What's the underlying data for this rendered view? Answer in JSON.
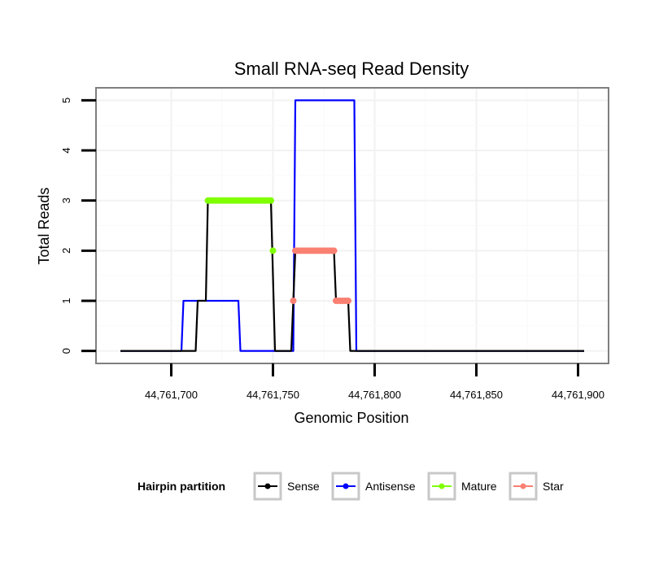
{
  "chart_data": {
    "type": "line",
    "title": "Small RNA-seq Read Density",
    "xlabel": "Genomic Position",
    "ylabel": "Total Reads",
    "xlim": [
      44761663,
      44761915
    ],
    "ylim": [
      -0.25,
      5.25
    ],
    "x_ticks": [
      44761700,
      44761750,
      44761800,
      44761850,
      44761900
    ],
    "x_tick_labels": [
      "44,761,700",
      "44,761,750",
      "44,761,800",
      "44,761,850",
      "44,761,900"
    ],
    "y_ticks": [
      0,
      1,
      2,
      3,
      4,
      5
    ],
    "y_tick_labels": [
      "0",
      "1",
      "2",
      "3",
      "4",
      "5"
    ],
    "grid": true,
    "legend": {
      "title": "Hairpin partition",
      "position": "bottom",
      "entries": [
        {
          "name": "Sense",
          "color": "#000000"
        },
        {
          "name": "Antisense",
          "color": "#0000ff"
        },
        {
          "name": "Mature",
          "color": "#7fff00"
        },
        {
          "name": "Star",
          "color": "#fa8072"
        }
      ]
    },
    "series": [
      {
        "name": "Antisense",
        "color": "#0000ff",
        "style": "line",
        "points": [
          [
            44761675,
            0
          ],
          [
            44761705,
            0
          ],
          [
            44761706,
            1
          ],
          [
            44761733,
            1
          ],
          [
            44761734,
            0
          ],
          [
            44761760,
            0
          ],
          [
            44761761,
            5
          ],
          [
            44761790,
            5
          ],
          [
            44761791,
            0
          ],
          [
            44761903,
            0
          ]
        ]
      },
      {
        "name": "Sense",
        "color": "#000000",
        "style": "line",
        "points": [
          [
            44761675,
            0
          ],
          [
            44761712,
            0
          ],
          [
            44761713,
            1
          ],
          [
            44761717,
            1
          ],
          [
            44761718,
            3
          ],
          [
            44761749,
            3
          ],
          [
            44761751,
            0
          ],
          [
            44761759,
            0
          ],
          [
            44761760,
            1
          ],
          [
            44761761,
            2
          ],
          [
            44761780,
            2
          ],
          [
            44761781,
            1
          ],
          [
            44761787,
            1
          ],
          [
            44761788,
            0
          ],
          [
            44761903,
            0
          ]
        ]
      },
      {
        "name": "Mature",
        "color": "#7fff00",
        "style": "points",
        "points": [
          [
            44761718,
            3
          ],
          [
            44761719,
            3
          ],
          [
            44761720,
            3
          ],
          [
            44761721,
            3
          ],
          [
            44761722,
            3
          ],
          [
            44761723,
            3
          ],
          [
            44761724,
            3
          ],
          [
            44761725,
            3
          ],
          [
            44761726,
            3
          ],
          [
            44761727,
            3
          ],
          [
            44761728,
            3
          ],
          [
            44761729,
            3
          ],
          [
            44761730,
            3
          ],
          [
            44761731,
            3
          ],
          [
            44761732,
            3
          ],
          [
            44761733,
            3
          ],
          [
            44761734,
            3
          ],
          [
            44761735,
            3
          ],
          [
            44761736,
            3
          ],
          [
            44761737,
            3
          ],
          [
            44761738,
            3
          ],
          [
            44761739,
            3
          ],
          [
            44761740,
            3
          ],
          [
            44761741,
            3
          ],
          [
            44761742,
            3
          ],
          [
            44761743,
            3
          ],
          [
            44761744,
            3
          ],
          [
            44761745,
            3
          ],
          [
            44761746,
            3
          ],
          [
            44761747,
            3
          ],
          [
            44761748,
            3
          ],
          [
            44761749,
            3
          ],
          [
            44761750,
            2
          ]
        ]
      },
      {
        "name": "Star",
        "color": "#fa8072",
        "style": "points",
        "points": [
          [
            44761760,
            1
          ],
          [
            44761761,
            2
          ],
          [
            44761762,
            2
          ],
          [
            44761763,
            2
          ],
          [
            44761764,
            2
          ],
          [
            44761765,
            2
          ],
          [
            44761766,
            2
          ],
          [
            44761767,
            2
          ],
          [
            44761768,
            2
          ],
          [
            44761769,
            2
          ],
          [
            44761770,
            2
          ],
          [
            44761771,
            2
          ],
          [
            44761772,
            2
          ],
          [
            44761773,
            2
          ],
          [
            44761774,
            2
          ],
          [
            44761775,
            2
          ],
          [
            44761776,
            2
          ],
          [
            44761777,
            2
          ],
          [
            44761778,
            2
          ],
          [
            44761779,
            2
          ],
          [
            44761780,
            2
          ],
          [
            44761781,
            1
          ],
          [
            44761782,
            1
          ],
          [
            44761783,
            1
          ],
          [
            44761784,
            1
          ],
          [
            44761785,
            1
          ],
          [
            44761786,
            1
          ],
          [
            44761787,
            1
          ]
        ]
      }
    ]
  }
}
